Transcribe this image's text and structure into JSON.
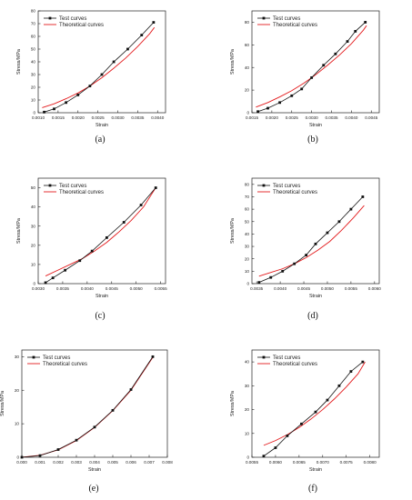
{
  "colors": {
    "test": "#111111",
    "theory": "#e31a1c",
    "axis": "#222222"
  },
  "chart_data": [
    {
      "type": "line",
      "panel_label": "(a)",
      "xlabel": "Strain",
      "ylabel": "Stress/MPa",
      "xlim": [
        0.001,
        0.0042
      ],
      "ylim": [
        0,
        80
      ],
      "xticks": [
        0.001,
        0.0015,
        0.002,
        0.0025,
        0.003,
        0.0035,
        0.004
      ],
      "xtick_labels": [
        "0.0010",
        "0.0015",
        "0.0020",
        "0.0025",
        "0.0030",
        "0.0035",
        "0.0040"
      ],
      "yticks": [
        0,
        10,
        20,
        30,
        40,
        50,
        60,
        70,
        80
      ],
      "ytick_labels": [
        "0",
        "10",
        "20",
        "30",
        "40",
        "50",
        "60",
        "70",
        "80"
      ],
      "legend": [
        "Test curves",
        "Theoretical curves"
      ],
      "legend_position": "top-left",
      "series": [
        {
          "name": "Test curves",
          "x": [
            0.00115,
            0.0014,
            0.0017,
            0.002,
            0.0023,
            0.0026,
            0.0029,
            0.00325,
            0.0036,
            0.0039
          ],
          "y": [
            0.5,
            3,
            8,
            14,
            21,
            30,
            40,
            50,
            61,
            71
          ]
        },
        {
          "name": "Theoretical curves",
          "x": [
            0.0011,
            0.0014,
            0.0017,
            0.002,
            0.0023,
            0.0026,
            0.0029,
            0.0032,
            0.0035,
            0.0038,
            0.00392
          ],
          "y": [
            4,
            7,
            11,
            15.5,
            21,
            27.5,
            35,
            43,
            52,
            62,
            67
          ]
        }
      ]
    },
    {
      "type": "line",
      "panel_label": "(b)",
      "xlabel": "Strain",
      "ylabel": "Stress/MPa",
      "xlim": [
        0.0015,
        0.0047
      ],
      "ylim": [
        0,
        90
      ],
      "xticks": [
        0.0015,
        0.002,
        0.0025,
        0.003,
        0.0035,
        0.004,
        0.0045
      ],
      "xtick_labels": [
        "0.0015",
        "0.0020",
        "0.0025",
        "0.0030",
        "0.0035",
        "0.0040",
        "0.0045"
      ],
      "yticks": [
        0,
        20,
        40,
        60,
        80
      ],
      "ytick_labels": [
        "0",
        "20",
        "40",
        "60",
        "80"
      ],
      "legend": [
        "Test curves",
        "Theoretical curves"
      ],
      "legend_position": "top-left",
      "series": [
        {
          "name": "Test curves",
          "x": [
            0.00165,
            0.0019,
            0.0022,
            0.0025,
            0.00275,
            0.003,
            0.0033,
            0.0036,
            0.0039,
            0.0041,
            0.00435
          ],
          "y": [
            1,
            4,
            9,
            15,
            21,
            31,
            42,
            52,
            63,
            72,
            80
          ]
        },
        {
          "name": "Theoretical curves",
          "x": [
            0.0016,
            0.0019,
            0.0022,
            0.0025,
            0.0028,
            0.0031,
            0.0034,
            0.0037,
            0.004,
            0.0043,
            0.00438
          ],
          "y": [
            5,
            9,
            14,
            19.5,
            26,
            33.5,
            42,
            51,
            61,
            73,
            77
          ]
        }
      ]
    },
    {
      "type": "line",
      "panel_label": "(c)",
      "xlabel": "Strain",
      "ylabel": "Stress/MPa",
      "xlim": [
        0.003,
        0.0056
      ],
      "ylim": [
        0,
        55
      ],
      "xticks": [
        0.003,
        0.0035,
        0.004,
        0.0045,
        0.005,
        0.0055
      ],
      "xtick_labels": [
        "0.0030",
        "0.0035",
        "0.0040",
        "0.0045",
        "0.0050",
        "0.0055"
      ],
      "yticks": [
        0,
        10,
        20,
        30,
        40,
        50
      ],
      "ytick_labels": [
        "0",
        "10",
        "20",
        "30",
        "40",
        "50"
      ],
      "legend": [
        "Test curves",
        "Theoretical curves"
      ],
      "legend_position": "top-left",
      "series": [
        {
          "name": "Test curves",
          "x": [
            0.00315,
            0.0033,
            0.00355,
            0.00385,
            0.0041,
            0.0044,
            0.00475,
            0.0051,
            0.0054
          ],
          "y": [
            0.5,
            3,
            7,
            12,
            17,
            24,
            32,
            41,
            50
          ]
        },
        {
          "name": "Theoretical curves",
          "x": [
            0.00315,
            0.0034,
            0.00365,
            0.0039,
            0.00415,
            0.0044,
            0.00465,
            0.0049,
            0.00515,
            0.0054
          ],
          "y": [
            4,
            7,
            10,
            13,
            17,
            21.5,
            27,
            33,
            40,
            50
          ]
        }
      ]
    },
    {
      "type": "line",
      "panel_label": "(d)",
      "xlabel": "Strain",
      "ylabel": "Stress/MPa",
      "xlim": [
        0.0034,
        0.0061
      ],
      "ylim": [
        0,
        85
      ],
      "xticks": [
        0.0035,
        0.004,
        0.0045,
        0.005,
        0.0055,
        0.006
      ],
      "xtick_labels": [
        "0.0035",
        "0.0040",
        "0.0045",
        "0.0050",
        "0.0055",
        "0.0060"
      ],
      "yticks": [
        0,
        10,
        20,
        30,
        40,
        50,
        60,
        70,
        80
      ],
      "ytick_labels": [
        "0",
        "10",
        "20",
        "30",
        "40",
        "50",
        "60",
        "70",
        "80"
      ],
      "legend": [
        "Test curves",
        "Theoretical curves"
      ],
      "legend_position": "top-left",
      "series": [
        {
          "name": "Test curves",
          "x": [
            0.00355,
            0.0038,
            0.00405,
            0.0043,
            0.00455,
            0.00475,
            0.005,
            0.00525,
            0.0055,
            0.00575
          ],
          "y": [
            1,
            5,
            10,
            16,
            23,
            32,
            41,
            50,
            60,
            70
          ]
        },
        {
          "name": "Theoretical curves",
          "x": [
            0.00355,
            0.0038,
            0.00405,
            0.0043,
            0.00455,
            0.0048,
            0.00505,
            0.0053,
            0.00555,
            0.00578
          ],
          "y": [
            6,
            9,
            12,
            16,
            21,
            27,
            34,
            43,
            53,
            63
          ]
        }
      ]
    },
    {
      "type": "line",
      "panel_label": "(e)",
      "xlabel": "Strain",
      "ylabel": "Stress/MPa",
      "xlim": [
        0.0,
        0.008
      ],
      "ylim": [
        0,
        32
      ],
      "xticks": [
        0.0,
        0.001,
        0.002,
        0.003,
        0.004,
        0.005,
        0.006,
        0.007,
        0.008
      ],
      "xtick_labels": [
        "0.000",
        "0.001",
        "0.002",
        "0.003",
        "0.004",
        "0.005",
        "0.006",
        "0.007",
        "0.008"
      ],
      "yticks": [
        0,
        10,
        20,
        30
      ],
      "ytick_labels": [
        "0",
        "10",
        "20",
        "30"
      ],
      "legend": [
        "Test curves",
        "Theoretical curves"
      ],
      "legend_position": "top-left",
      "series": [
        {
          "name": "Test curves",
          "x": [
            0.0,
            0.001,
            0.002,
            0.003,
            0.004,
            0.005,
            0.006,
            0.0072
          ],
          "y": [
            0,
            0.5,
            2.3,
            5.1,
            9.0,
            14.0,
            20.2,
            30.0
          ]
        },
        {
          "name": "Theoretical curves",
          "x": [
            0.0,
            0.001,
            0.002,
            0.003,
            0.004,
            0.005,
            0.006,
            0.0072
          ],
          "y": [
            0,
            0.6,
            2.2,
            5.0,
            8.9,
            13.9,
            20.0,
            29.8
          ]
        }
      ]
    },
    {
      "type": "line",
      "panel_label": "(f)",
      "xlabel": "Strain",
      "ylabel": "Stress/MPa",
      "xlim": [
        0.0055,
        0.0082
      ],
      "ylim": [
        0,
        45
      ],
      "xticks": [
        0.0055,
        0.006,
        0.0065,
        0.007,
        0.0075,
        0.008
      ],
      "xtick_labels": [
        "0.0055",
        "0.0060",
        "0.0065",
        "0.0070",
        "0.0075",
        "0.0080"
      ],
      "yticks": [
        0,
        10,
        20,
        30,
        40
      ],
      "ytick_labels": [
        "0",
        "10",
        "20",
        "30",
        "40"
      ],
      "legend": [
        "Test curves",
        "Theoretical curves"
      ],
      "legend_position": "top-left",
      "series": [
        {
          "name": "Test curves",
          "x": [
            0.00575,
            0.006,
            0.00625,
            0.00655,
            0.00685,
            0.0071,
            0.00735,
            0.0076,
            0.00785
          ],
          "y": [
            0.5,
            4,
            9,
            14,
            19,
            24,
            30,
            36,
            40
          ]
        },
        {
          "name": "Theoretical curves",
          "x": [
            0.00575,
            0.006,
            0.00625,
            0.0065,
            0.00675,
            0.007,
            0.00725,
            0.0075,
            0.00775,
            0.0079
          ],
          "y": [
            5,
            7,
            9.5,
            12.5,
            16,
            20,
            24.5,
            29.5,
            35,
            40
          ]
        }
      ]
    }
  ]
}
